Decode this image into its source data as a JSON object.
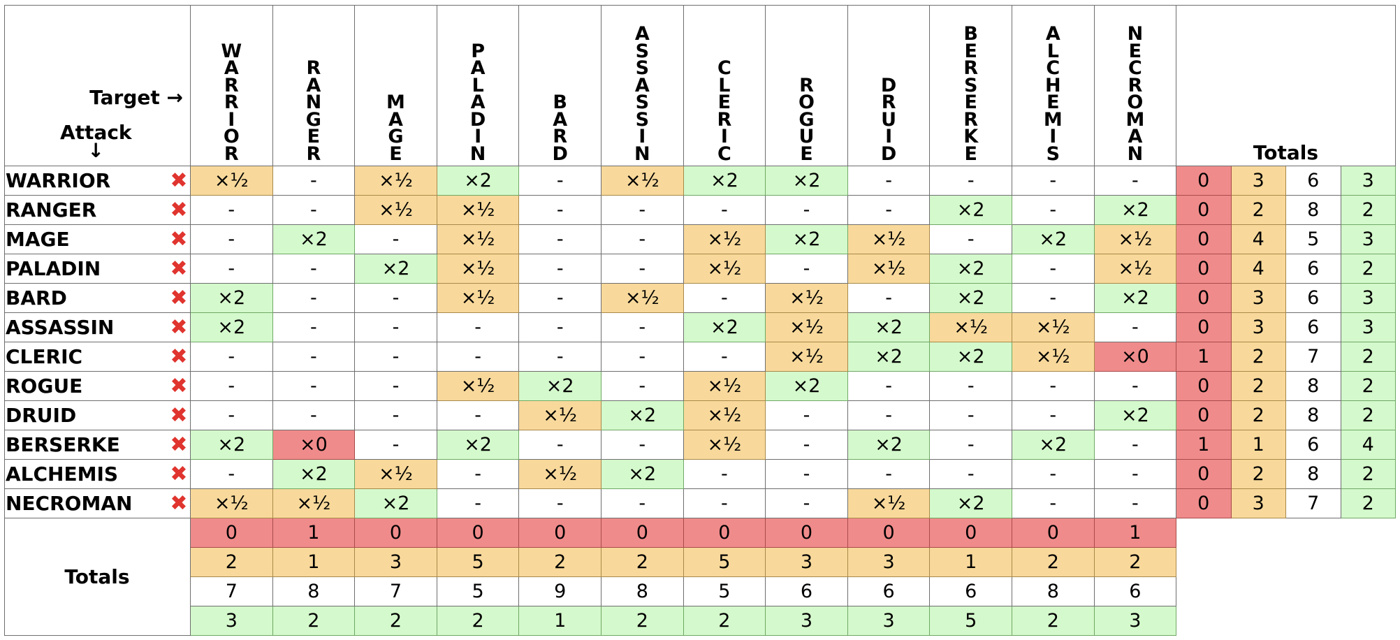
{
  "header": {
    "target_label": "Target →",
    "attack_label": "Attack",
    "attack_arrow": "↓",
    "totals_label": "Totals"
  },
  "columns": [
    "WARRIOR",
    "RANGER",
    "MAGE",
    "PALADIN",
    "BARD",
    "ASSASSIN",
    "CLERIC",
    "ROGUE",
    "DRUID",
    "BERSERKE",
    "ALCHEMIS",
    "NECROMAN"
  ],
  "row_icon": "cross-icon",
  "row_icon_glyph": "✖",
  "rows": [
    {
      "name": "WARRIOR",
      "cells": [
        "×½",
        "-",
        "×½",
        "×2",
        "-",
        "×½",
        "×2",
        "×2",
        "-",
        "-",
        "-",
        "-"
      ],
      "totals": [
        0,
        3,
        6,
        3
      ]
    },
    {
      "name": "RANGER",
      "cells": [
        "-",
        "-",
        "×½",
        "×½",
        "-",
        "-",
        "-",
        "-",
        "-",
        "×2",
        "-",
        "×2"
      ],
      "totals": [
        0,
        2,
        8,
        2
      ]
    },
    {
      "name": "MAGE",
      "cells": [
        "-",
        "×2",
        "-",
        "×½",
        "-",
        "-",
        "×½",
        "×2",
        "×½",
        "-",
        "×2",
        "×½"
      ],
      "totals": [
        0,
        4,
        5,
        3
      ]
    },
    {
      "name": "PALADIN",
      "cells": [
        "-",
        "-",
        "×2",
        "×½",
        "-",
        "-",
        "×½",
        "-",
        "×½",
        "×2",
        "-",
        "×½"
      ],
      "totals": [
        0,
        4,
        6,
        2
      ]
    },
    {
      "name": "BARD",
      "cells": [
        "×2",
        "-",
        "-",
        "×½",
        "-",
        "×½",
        "-",
        "×½",
        "-",
        "×2",
        "-",
        "×2"
      ],
      "totals": [
        0,
        3,
        6,
        3
      ]
    },
    {
      "name": "ASSASSIN",
      "cells": [
        "×2",
        "-",
        "-",
        "-",
        "-",
        "-",
        "×2",
        "×½",
        "×2",
        "×½",
        "×½",
        "-"
      ],
      "totals": [
        0,
        3,
        6,
        3
      ]
    },
    {
      "name": "CLERIC",
      "cells": [
        "-",
        "-",
        "-",
        "-",
        "-",
        "-",
        "-",
        "×½",
        "×2",
        "×2",
        "×½",
        "×0"
      ],
      "totals": [
        1,
        2,
        7,
        2
      ]
    },
    {
      "name": "ROGUE",
      "cells": [
        "-",
        "-",
        "-",
        "×½",
        "×2",
        "-",
        "×½",
        "×2",
        "-",
        "-",
        "-",
        "-"
      ],
      "totals": [
        0,
        2,
        8,
        2
      ]
    },
    {
      "name": "DRUID",
      "cells": [
        "-",
        "-",
        "-",
        "-",
        "×½",
        "×2",
        "×½",
        "-",
        "-",
        "-",
        "-",
        "×2"
      ],
      "totals": [
        0,
        2,
        8,
        2
      ]
    },
    {
      "name": "BERSERKE",
      "cells": [
        "×2",
        "×0",
        "-",
        "×2",
        "-",
        "-",
        "×½",
        "-",
        "×2",
        "-",
        "×2",
        "-"
      ],
      "totals": [
        1,
        1,
        6,
        4
      ]
    },
    {
      "name": "ALCHEMIS",
      "cells": [
        "-",
        "×2",
        "×½",
        "-",
        "×½",
        "×2",
        "-",
        "-",
        "-",
        "-",
        "-",
        "-"
      ],
      "totals": [
        0,
        2,
        8,
        2
      ]
    },
    {
      "name": "NECROMAN",
      "cells": [
        "×½",
        "×½",
        "×2",
        "-",
        "-",
        "-",
        "-",
        "-",
        "×½",
        "×2",
        "-",
        "-"
      ],
      "totals": [
        0,
        3,
        7,
        2
      ]
    }
  ],
  "column_totals": [
    [
      0,
      1,
      0,
      0,
      0,
      0,
      0,
      0,
      0,
      0,
      0,
      1
    ],
    [
      2,
      1,
      3,
      5,
      2,
      2,
      5,
      3,
      3,
      1,
      2,
      2
    ],
    [
      7,
      8,
      7,
      5,
      9,
      8,
      5,
      6,
      6,
      6,
      8,
      6
    ],
    [
      3,
      2,
      2,
      2,
      1,
      2,
      2,
      3,
      3,
      5,
      2,
      3
    ]
  ],
  "colors": {
    "x0": "#f08b8b",
    "half": "#f8d99b",
    "x2": "#d4f9cc",
    "neutral": "#ffffff",
    "cross": "#e0342e"
  }
}
